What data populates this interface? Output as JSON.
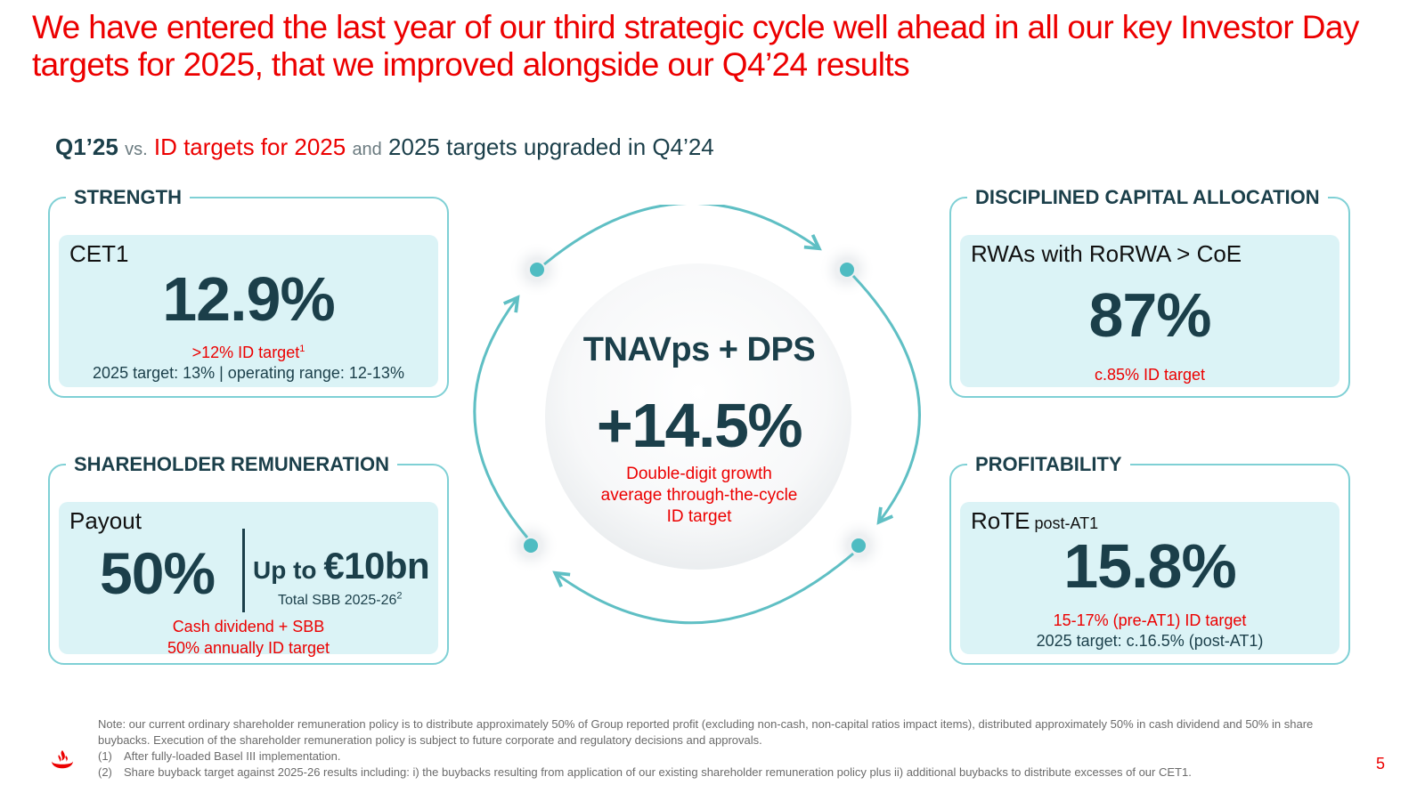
{
  "title": "We have entered the last year of our third strategic cycle well ahead in all our key Investor Day targets for 2025, that we improved alongside our Q4’24 results",
  "subtitle": {
    "q": "Q1’25",
    "vs": "vs.",
    "id_targets": "ID targets for 2025",
    "and": "and",
    "upgraded": "2025 targets upgraded in Q4’24"
  },
  "strength": {
    "section": "STRENGTH",
    "label": "CET1",
    "value": "12.9%",
    "id_target": ">12% ID target",
    "id_sup": "1",
    "target_2025": "2025 target: 13% | operating range: 12-13%"
  },
  "capital": {
    "section": "DISCIPLINED CAPITAL ALLOCATION",
    "label": "RWAs with RoRWA > CoE",
    "value": "87%",
    "id_target": "c.85% ID target"
  },
  "remuneration": {
    "section": "SHAREHOLDER REMUNERATION",
    "label": "Payout",
    "value": "50%",
    "upto": "Up to ",
    "amount": "€10bn",
    "sbb": "Total SBB 2025-26",
    "sbb_sup": "2",
    "id_line1": "Cash dividend + SBB",
    "id_line2": "50% annually ID target"
  },
  "profitability": {
    "section": "PROFITABILITY",
    "label": "RoTE",
    "label_small": " post-AT1",
    "value": "15.8%",
    "id_target": "15-17% (pre-AT1) ID target",
    "target_2025": "2025 target: c.16.5% (post-AT1)"
  },
  "center": {
    "title": "TNAVps + DPS",
    "value": "+14.5%",
    "line1": "Double-digit growth",
    "line2": "average through-the-cycle",
    "line3": "ID target"
  },
  "footnotes": {
    "note": "Note: our current ordinary shareholder remuneration policy is to distribute approximately 50% of Group reported profit (excluding non-cash, non-capital ratios impact items), distributed approximately 50% in cash dividend and 50% in share buybacks. Execution of the shareholder remuneration policy is subject to future corporate and regulatory decisions and approvals.",
    "fn1_num": "(1)",
    "fn1": "After fully-loaded Basel III implementation.",
    "fn2_num": "(2)",
    "fn2": "Share buyback target against 2025-26 results including: i) the buybacks resulting from application of our existing shareholder remuneration policy plus ii) additional buybacks to distribute excesses of our CET1."
  },
  "page_number": "5",
  "colors": {
    "brand_red": "#ec0000",
    "dark_teal": "#1b3f4a",
    "teal": "#5fbfc4",
    "box_fill": "#dbf3f6"
  }
}
